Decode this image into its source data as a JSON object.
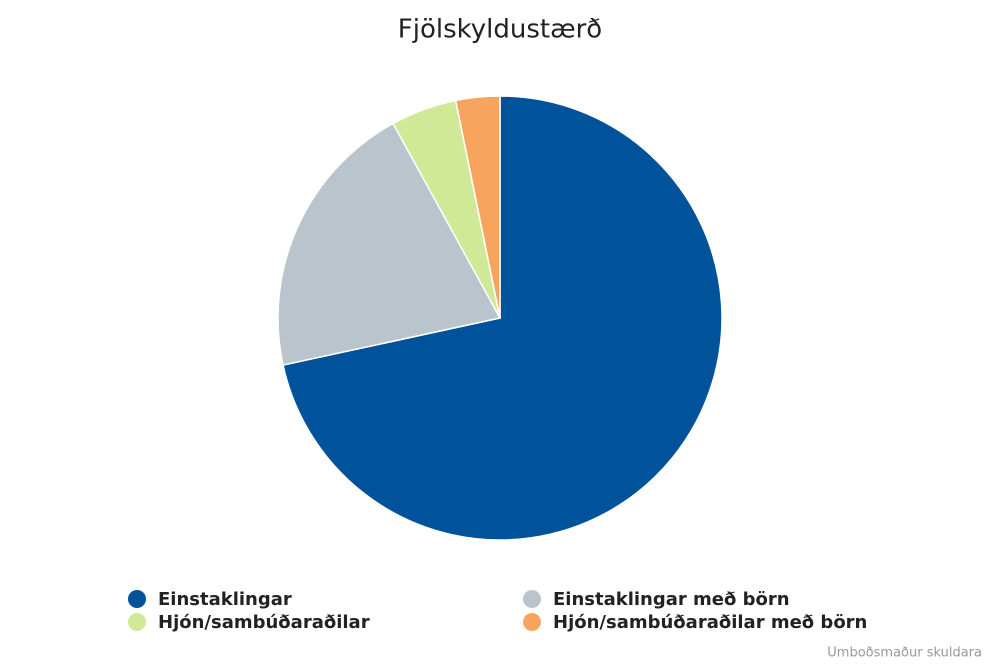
{
  "chart_data": {
    "type": "pie",
    "title": "Fjölskyldustærð",
    "categories": [
      "Einstaklingar",
      "Einstaklingar með börn",
      "Hjón/sambúðaraðilar",
      "Hjón/sambúðaraðilar með börn"
    ],
    "values": [
      71.6,
      20.4,
      4.8,
      3.2
    ],
    "colors": [
      "#00539b",
      "#b9c4cc",
      "#cfe996",
      "#f7a55e"
    ],
    "credit": "Umboðsmaður skuldara"
  }
}
